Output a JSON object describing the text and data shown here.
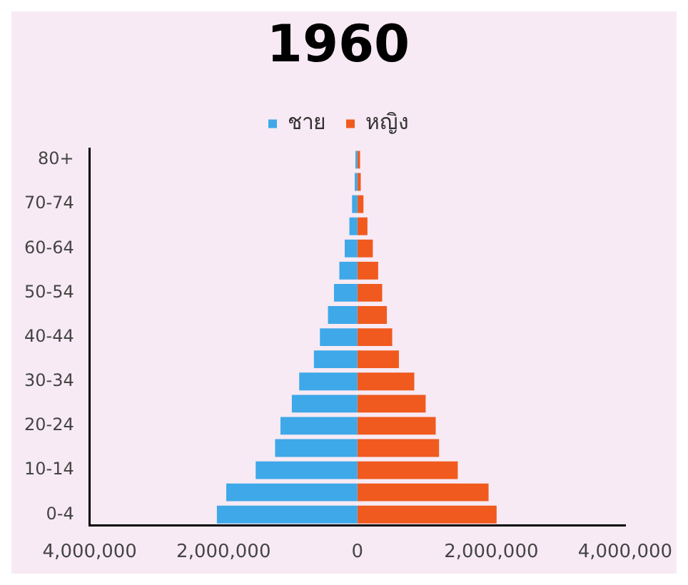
{
  "chart_data": {
    "type": "bar",
    "orientation": "horizontal",
    "title": "1960",
    "categories": [
      "80+",
      null,
      "70-74",
      null,
      "60-64",
      null,
      "50-54",
      null,
      "40-44",
      null,
      "30-34",
      null,
      "20-24",
      null,
      "10-14",
      null,
      "0-4"
    ],
    "series": [
      {
        "name": "ชาย",
        "color": "#3ea8e8",
        "values": [
          -30000,
          -40000,
          -80000,
          -120000,
          -190000,
          -270000,
          -350000,
          -440000,
          -560000,
          -650000,
          -870000,
          -980000,
          -1150000,
          -1230000,
          -1520000,
          -1960000,
          -2100000
        ]
      },
      {
        "name": "หญิง",
        "color": "#f05a1e",
        "values": [
          40000,
          50000,
          90000,
          150000,
          230000,
          310000,
          370000,
          440000,
          520000,
          620000,
          850000,
          1020000,
          1170000,
          1220000,
          1500000,
          1960000,
          2080000
        ]
      }
    ],
    "xlim": [
      -4000000,
      4000000
    ],
    "xticks": [
      {
        "value": -4000000,
        "label": "4,000,000"
      },
      {
        "value": -2000000,
        "label": "2,000,000"
      },
      0,
      {
        "value": 2000000,
        "label": "2,000,000"
      },
      {
        "value": 4000000,
        "label": "4,000,000"
      }
    ],
    "grid": false,
    "legend": "top",
    "stacked": true
  }
}
